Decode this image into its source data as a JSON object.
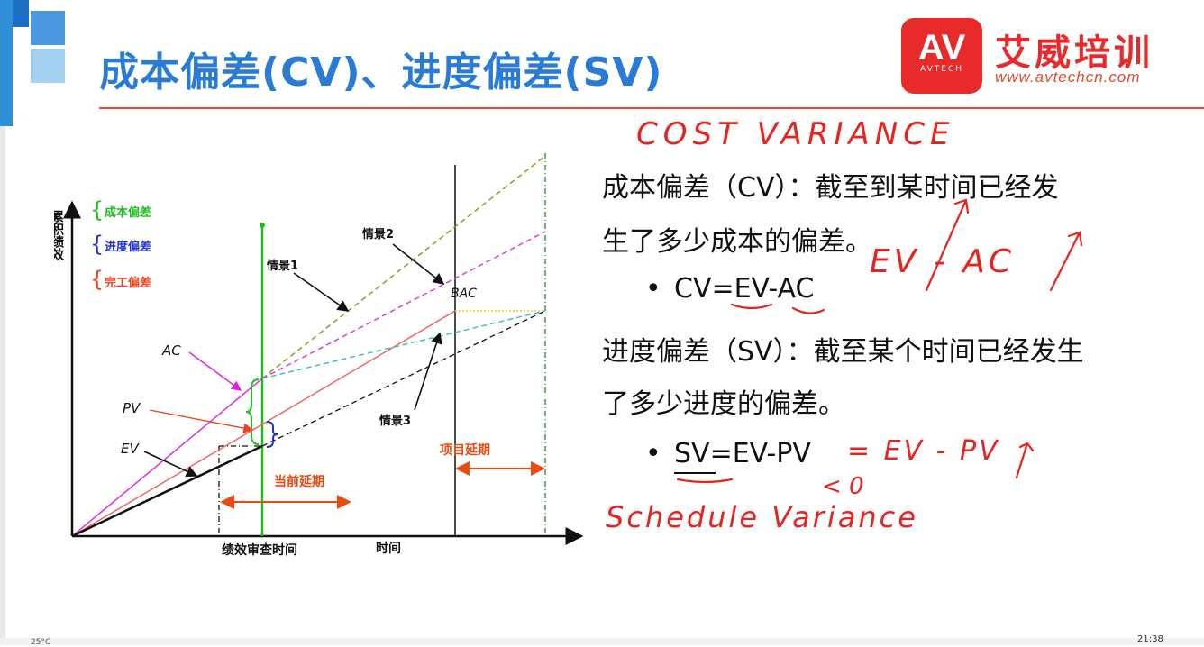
{
  "slide": {
    "title": "成本偏差(CV)、进度偏差(SV)",
    "brand_logo": "AV",
    "brand_logo_sub": "AVTECH",
    "brand_name": "艾威培训",
    "brand_url": "www.avtechcn.com"
  },
  "diagram": {
    "y_axis_label": "累积绩效",
    "x_axis_label": "时间",
    "review_time_label": "绩效审查时间",
    "legend": [
      {
        "label": "成本偏差",
        "color": "#1fbf1f"
      },
      {
        "label": "进度偏差",
        "color": "#2233cc"
      },
      {
        "label": "完工偏差",
        "color": "#f04020"
      }
    ],
    "scenario1": "情景1",
    "scenario2": "情景2",
    "scenario3": "情景3",
    "ac_label": "AC",
    "pv_label": "PV",
    "ev_label": "EV",
    "bac_label": "BAC",
    "current_delay": "当前延期",
    "project_delay": "项目延期"
  },
  "content": {
    "cv_line1": "成本偏差（CV）：截至到某时间已经发",
    "cv_line2": "生了多少成本的偏差。",
    "cv_formula": "CV=EV-AC",
    "sv_line1": "进度偏差（SV）：截至某个时间已经发生",
    "sv_line2": "了多少进度的偏差。",
    "sv_formula": "SV=EV-PV",
    "bullet": "•"
  },
  "handwriting": {
    "cost_variance": "COST VARIANCE",
    "schedule_variance": "Schedule Variance",
    "ev_ac": "EV - AC",
    "ev_pv": "= EV - PV",
    "less_zero": "< 0"
  },
  "taskbar": {
    "temperature": "25°C",
    "clock": "21:38"
  },
  "colors": {
    "title_blue": "#2a7bd6",
    "brand_red": "#e82a2a",
    "ink_red": "#e8231e"
  }
}
